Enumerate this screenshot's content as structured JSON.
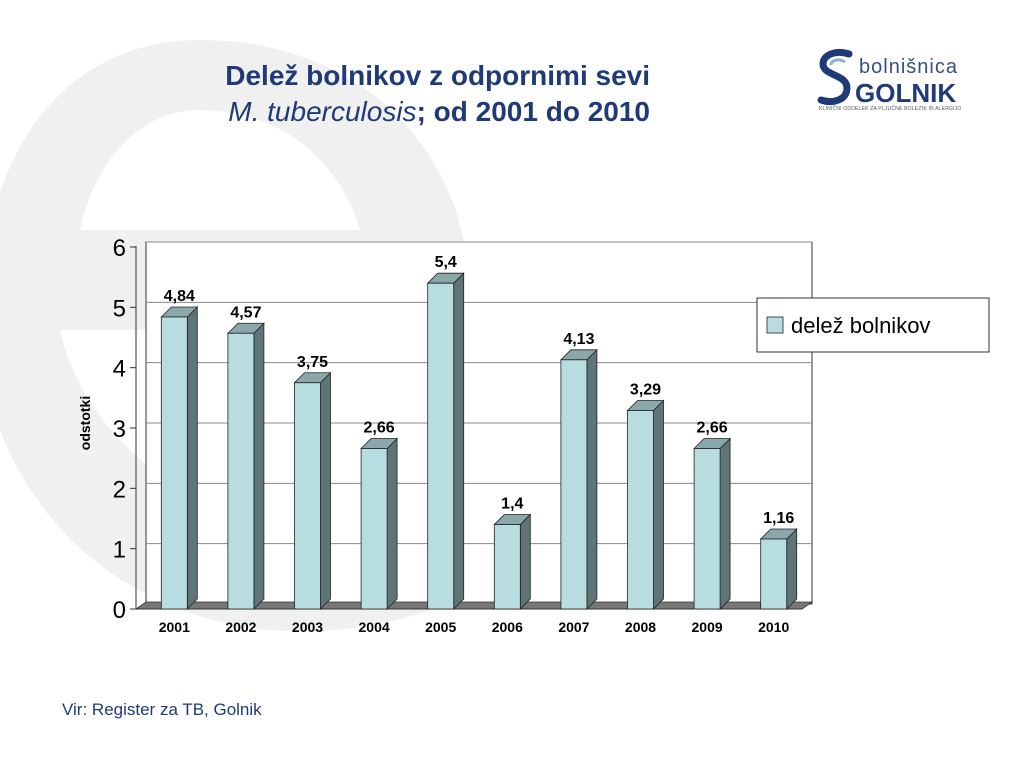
{
  "title": {
    "line1": "Delež bolnikov z odpornimi sevi",
    "line2_italic": "M. tuberculosis",
    "line2_rest": "; od 2001 do 2010"
  },
  "logo": {
    "word1": "bolnišnica",
    "word2": "GOLNIK",
    "subtitle": "KLINIČNI ODDELEK ZA PLJUČNE BOLEZNI IN ALERGIJO"
  },
  "source": "Vir: Register za TB, Golnik",
  "colors": {
    "bar_front": "#b8dde0",
    "bar_side": "#5e7476",
    "bar_top": "#8aa8aa",
    "floor": "#777777",
    "text_dark": "#1f3a78",
    "watermark": "#efefef"
  },
  "chart_data": {
    "type": "bar",
    "categories": [
      "2001",
      "2002",
      "2003",
      "2004",
      "2005",
      "2006",
      "2007",
      "2008",
      "2009",
      "2010"
    ],
    "series": [
      {
        "name": "delež bolnikov",
        "values": [
          4.84,
          4.57,
          3.75,
          2.66,
          5.4,
          1.4,
          4.13,
          3.29,
          2.66,
          1.16
        ]
      }
    ],
    "data_labels": [
      "4,84",
      "4,57",
      "3,75",
      "2,66",
      "5,4",
      "1,4",
      "4,13",
      "3,29",
      "2,66",
      "1,16"
    ],
    "ylabel": "odstotki",
    "xlabel": "",
    "ylim": [
      0,
      6
    ],
    "yticks": [
      0,
      1,
      2,
      3,
      4,
      5,
      6
    ],
    "grid": true,
    "legend_position": "right"
  }
}
